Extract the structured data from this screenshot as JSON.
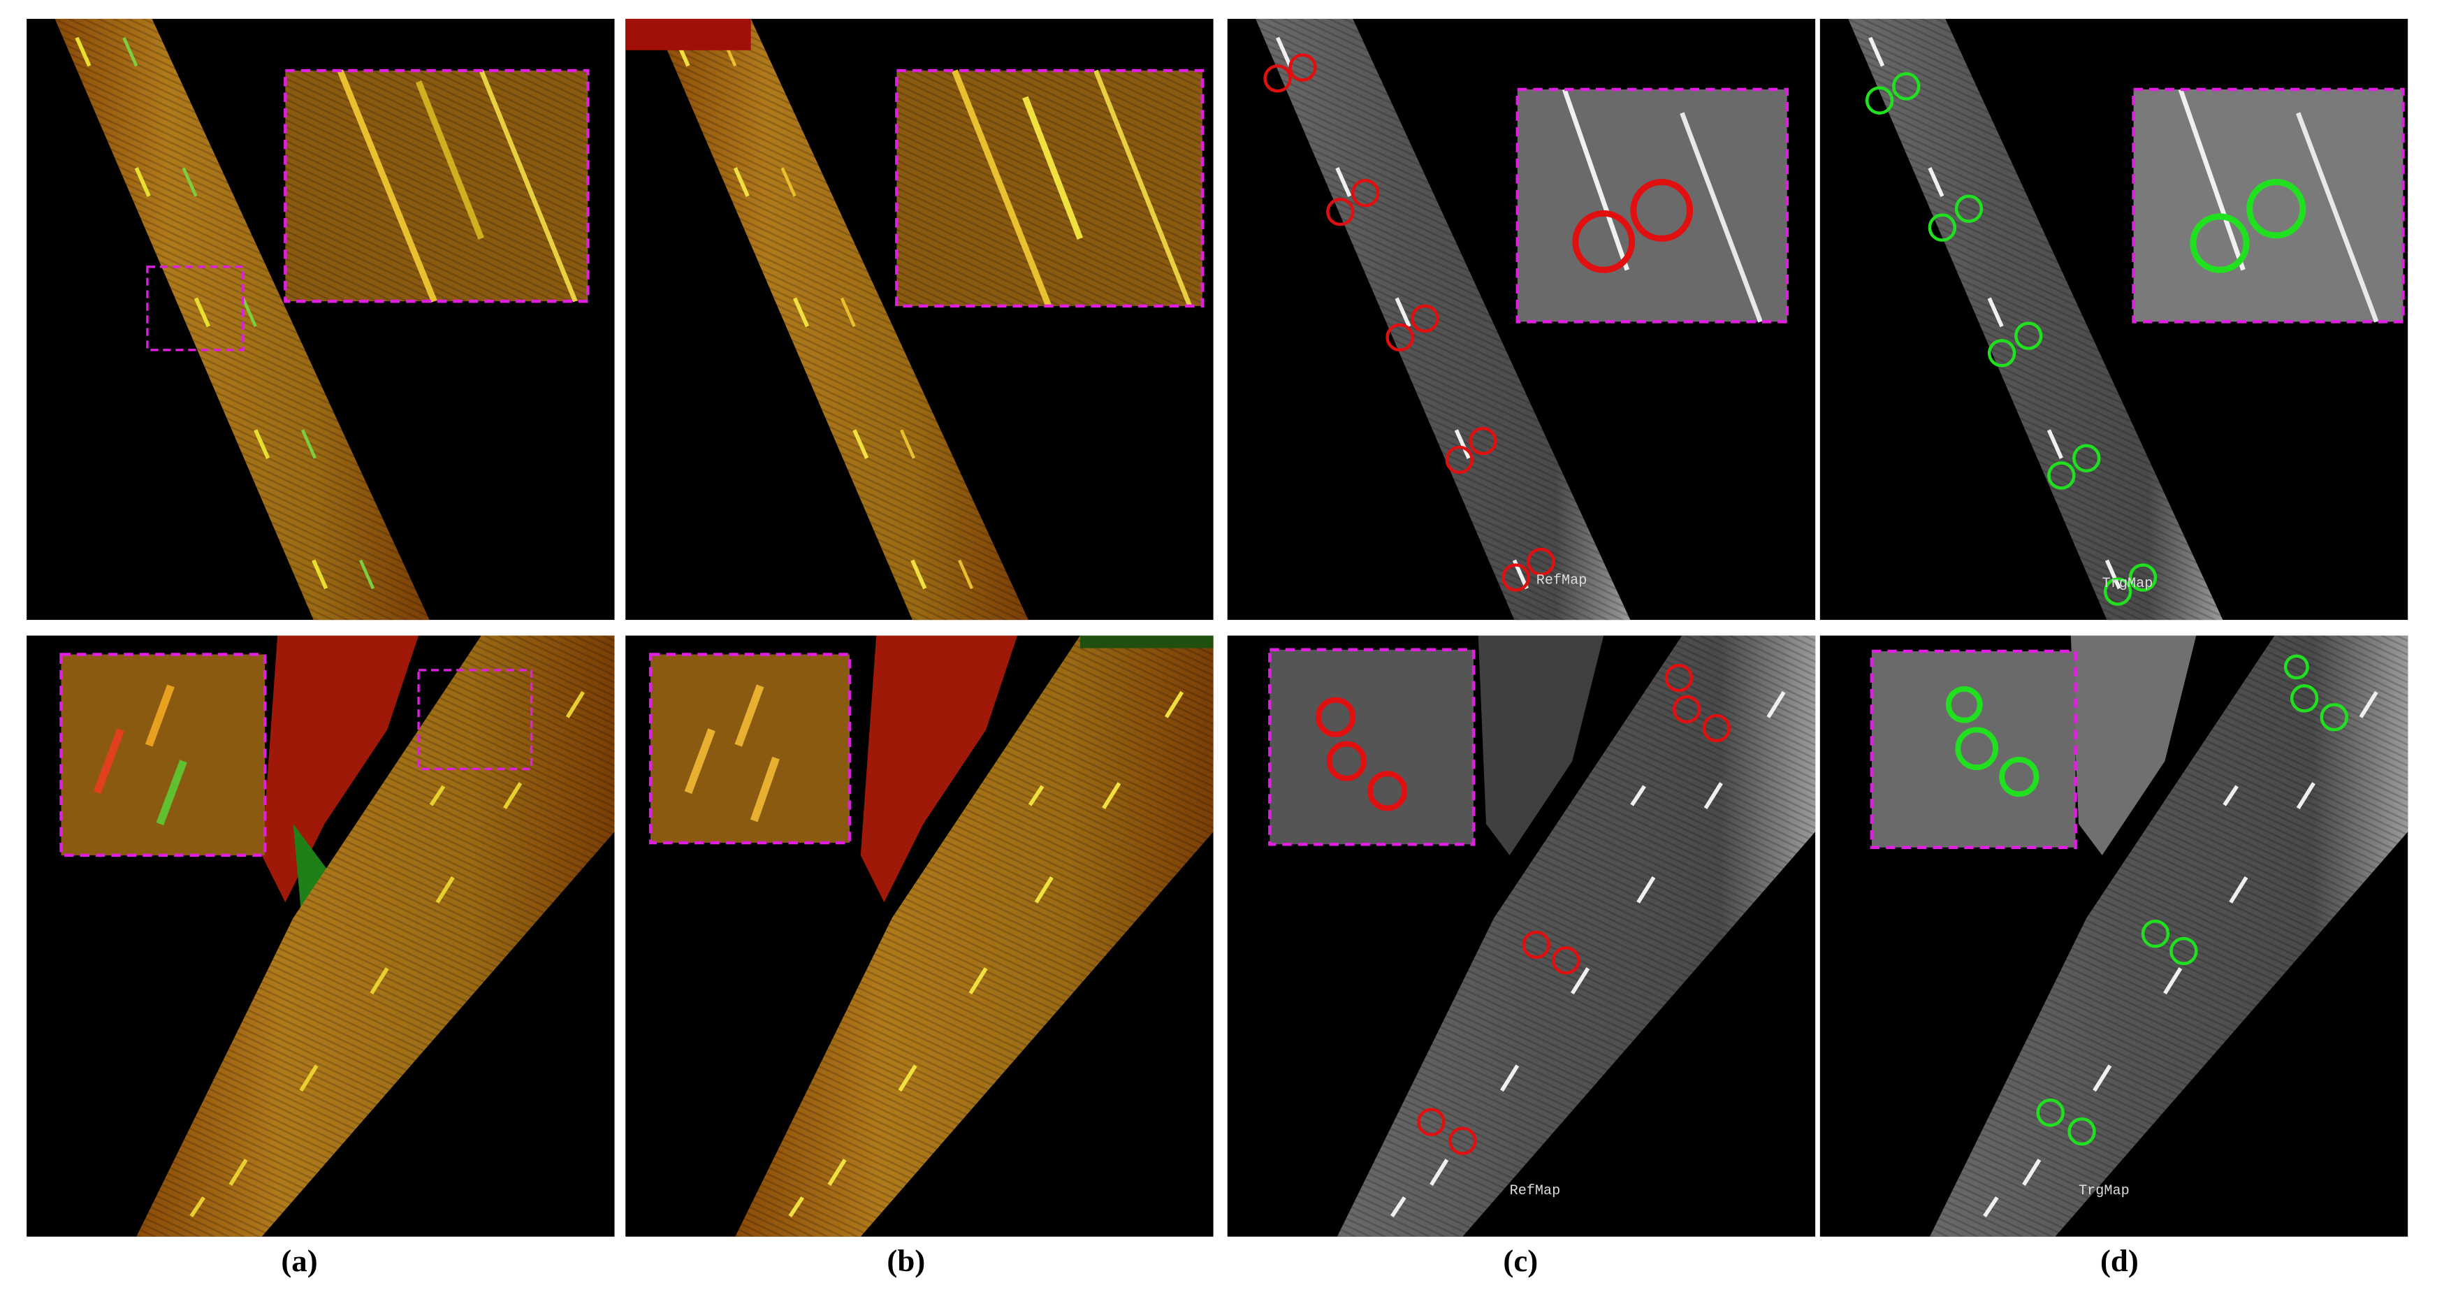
{
  "panels": [
    {
      "caption": "(a)"
    },
    {
      "caption": "(b)"
    },
    {
      "caption": "(c)",
      "top_label": "RefMap",
      "bottom_label": "RefMap"
    },
    {
      "caption": "(d)",
      "top_label": "TrgMap",
      "bottom_label": "TrgMap"
    }
  ]
}
